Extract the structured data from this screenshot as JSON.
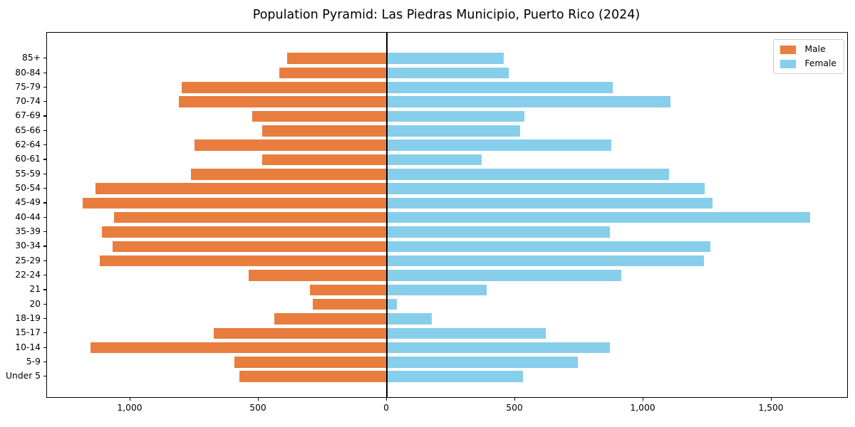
{
  "title": "Population Pyramid: Las Piedras Municipio, Puerto Rico (2024)",
  "legend": {
    "male_label": "Male",
    "female_label": "Female"
  },
  "colors": {
    "male": "#e87d3e",
    "female": "#87ceeb",
    "axis": "#000000",
    "text": "#000000",
    "legend_border": "#cccccc",
    "background": "#ffffff"
  },
  "chart_data": {
    "type": "bar",
    "subtype": "population-pyramid",
    "title": "Population Pyramid: Las Piedras Municipio, Puerto Rico (2024)",
    "categories_top_to_bottom": [
      "85+",
      "80-84",
      "75-79",
      "70-74",
      "67-69",
      "65-66",
      "62-64",
      "60-61",
      "55-59",
      "50-54",
      "45-49",
      "40-44",
      "35-39",
      "30-34",
      "25-29",
      "22-24",
      "21",
      "20",
      "18-19",
      "15-17",
      "10-14",
      "5-9",
      "Under 5"
    ],
    "series": [
      {
        "name": "Male",
        "side": "left",
        "color": "#e87d3e",
        "values": [
          390,
          420,
          800,
          810,
          525,
          485,
          750,
          485,
          765,
          1135,
          1185,
          1065,
          1110,
          1070,
          1120,
          540,
          300,
          290,
          440,
          675,
          1155,
          595,
          575
        ]
      },
      {
        "name": "Female",
        "side": "right",
        "color": "#87ceeb",
        "values": [
          455,
          475,
          880,
          1105,
          535,
          520,
          875,
          370,
          1100,
          1240,
          1270,
          1650,
          870,
          1260,
          1235,
          915,
          390,
          40,
          175,
          620,
          870,
          745,
          530
        ]
      }
    ],
    "x_ticks": [
      {
        "value": -1000,
        "label": "1,000"
      },
      {
        "value": -500,
        "label": "500"
      },
      {
        "value": 0,
        "label": "0"
      },
      {
        "value": 500,
        "label": "500"
      },
      {
        "value": 1000,
        "label": "1,000"
      },
      {
        "value": 1500,
        "label": "1,500"
      }
    ],
    "xlim": [
      -1320,
      1795
    ],
    "grid": false,
    "legend_position": "upper-right",
    "zero_axis_line": true
  }
}
